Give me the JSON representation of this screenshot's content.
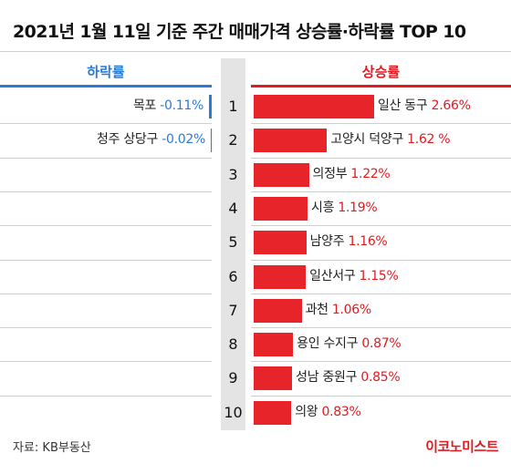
{
  "title": "2021년 1월 11일 기준 주간 매매가격 상승률·하락률 TOP 10",
  "headers": {
    "fall": "하락률",
    "rise": "상승률"
  },
  "source": "자료: KB부동산",
  "brand": "이코노미스트",
  "colors": {
    "rise": "#e8242b",
    "fall": "#2a7ad8",
    "rank_bg": "#e4e4e4"
  },
  "chart_data": {
    "type": "bar",
    "title": "2021년 1월 11일 기준 주간 매매가격 상승률·하락률 TOP 10",
    "ranks": [
      "1",
      "2",
      "3",
      "4",
      "5",
      "6",
      "7",
      "8",
      "9",
      "10"
    ],
    "rise": {
      "name": "상승률",
      "categories": [
        "일산 동구",
        "고양시 덕양구",
        "의정부",
        "시흥",
        "남양주",
        "일산서구",
        "과천",
        "용인 수지구",
        "성남 중원구",
        "의왕"
      ],
      "values": [
        2.66,
        1.62,
        1.22,
        1.19,
        1.16,
        1.15,
        1.06,
        0.87,
        0.85,
        0.83
      ],
      "labels": [
        "2.66%",
        "1.62 %",
        "1.22%",
        "1.19%",
        "1.16%",
        "1.15%",
        "1.06%",
        "0.87%",
        "0.85%",
        "0.83%"
      ]
    },
    "fall": {
      "name": "하락률",
      "categories": [
        "목포",
        "청주 상당구"
      ],
      "values": [
        -0.11,
        -0.02
      ],
      "labels": [
        "-0.11%",
        "-0.02%"
      ]
    }
  }
}
